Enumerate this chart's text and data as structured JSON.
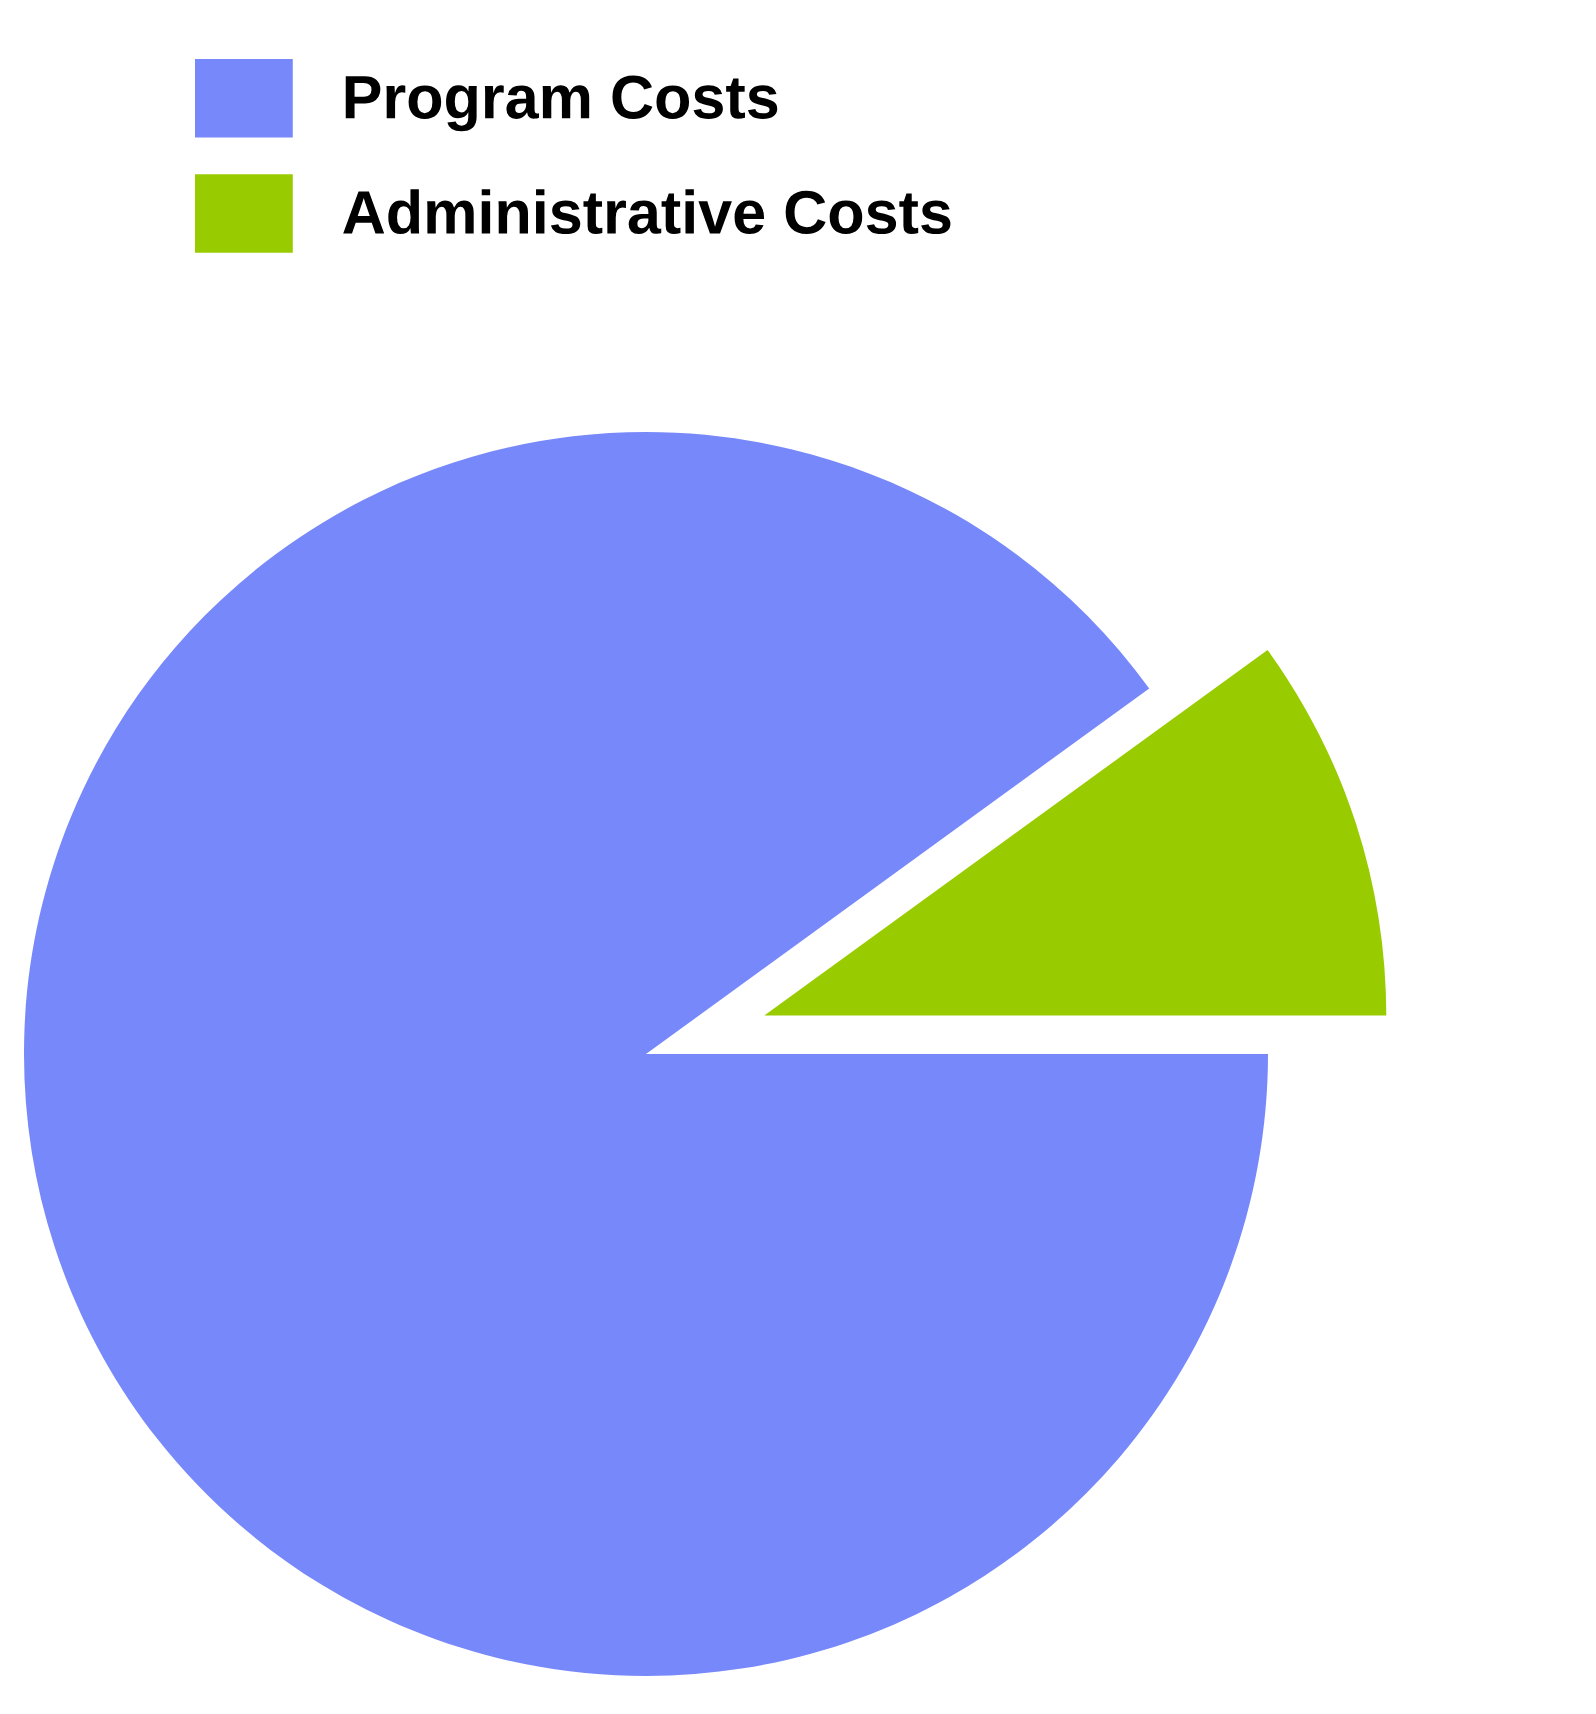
{
  "chart_data": {
    "type": "pie",
    "categories": [
      "Program Costs",
      "Administrative Costs"
    ],
    "values": [
      90,
      10
    ],
    "colors": [
      "#7788fb",
      "#99cc00"
    ],
    "legend": "top left"
  }
}
